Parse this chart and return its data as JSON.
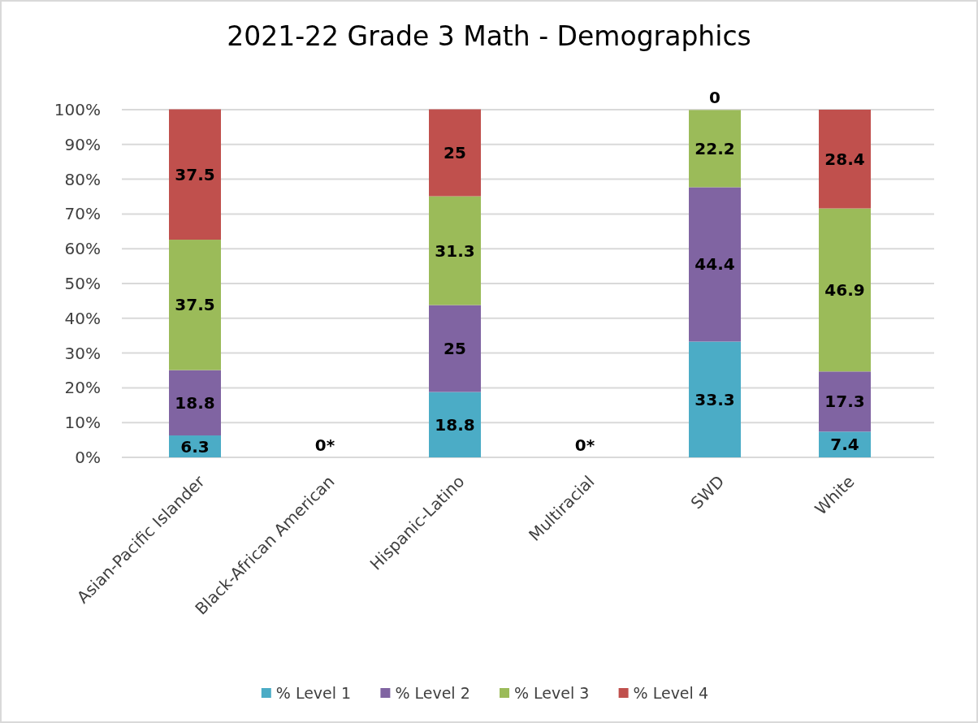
{
  "chart_data": {
    "type": "bar",
    "title": "2021-22 Grade 3 Math - Demographics",
    "categories": [
      "Asian-Pacific Islander",
      "Black-African American",
      "Hispanic-Latino",
      "Multiracial",
      "SWD",
      "White"
    ],
    "stacked": true,
    "series": [
      {
        "name": "% Level 1",
        "color": "#4bacc6",
        "values": [
          6.3,
          null,
          18.8,
          null,
          33.3,
          7.4
        ],
        "value_labels": [
          "6.3",
          null,
          "18.8",
          null,
          "33.3",
          "7.4"
        ]
      },
      {
        "name": "% Level 2",
        "color": "#8064a2",
        "values": [
          18.8,
          null,
          25,
          null,
          44.4,
          17.3
        ],
        "value_labels": [
          "18.8",
          null,
          "25",
          null,
          "44.4",
          "17.3"
        ]
      },
      {
        "name": "% Level 3",
        "color": "#9bbb59",
        "values": [
          37.5,
          null,
          31.3,
          null,
          22.2,
          46.9
        ],
        "value_labels": [
          "37.5",
          null,
          "31.3",
          null,
          "22.2",
          "46.9"
        ]
      },
      {
        "name": "% Level 4",
        "color": "#c0504d",
        "values": [
          37.5,
          0,
          25,
          0,
          0,
          28.4
        ],
        "value_labels": [
          "37.5",
          "0*",
          "25",
          "0*",
          "0",
          "28.4"
        ]
      }
    ],
    "ylim": [
      0,
      100
    ],
    "yticks": [
      {
        "value": 0,
        "label": "0%"
      },
      {
        "value": 10,
        "label": "10%"
      },
      {
        "value": 20,
        "label": "20%"
      },
      {
        "value": 30,
        "label": "30%"
      },
      {
        "value": 40,
        "label": "40%"
      },
      {
        "value": 50,
        "label": "50%"
      },
      {
        "value": 60,
        "label": "60%"
      },
      {
        "value": 70,
        "label": "70%"
      },
      {
        "value": 80,
        "label": "80%"
      },
      {
        "value": 90,
        "label": "90%"
      },
      {
        "value": 100,
        "label": "100%"
      }
    ],
    "grid": "y",
    "legend": "bottom"
  }
}
